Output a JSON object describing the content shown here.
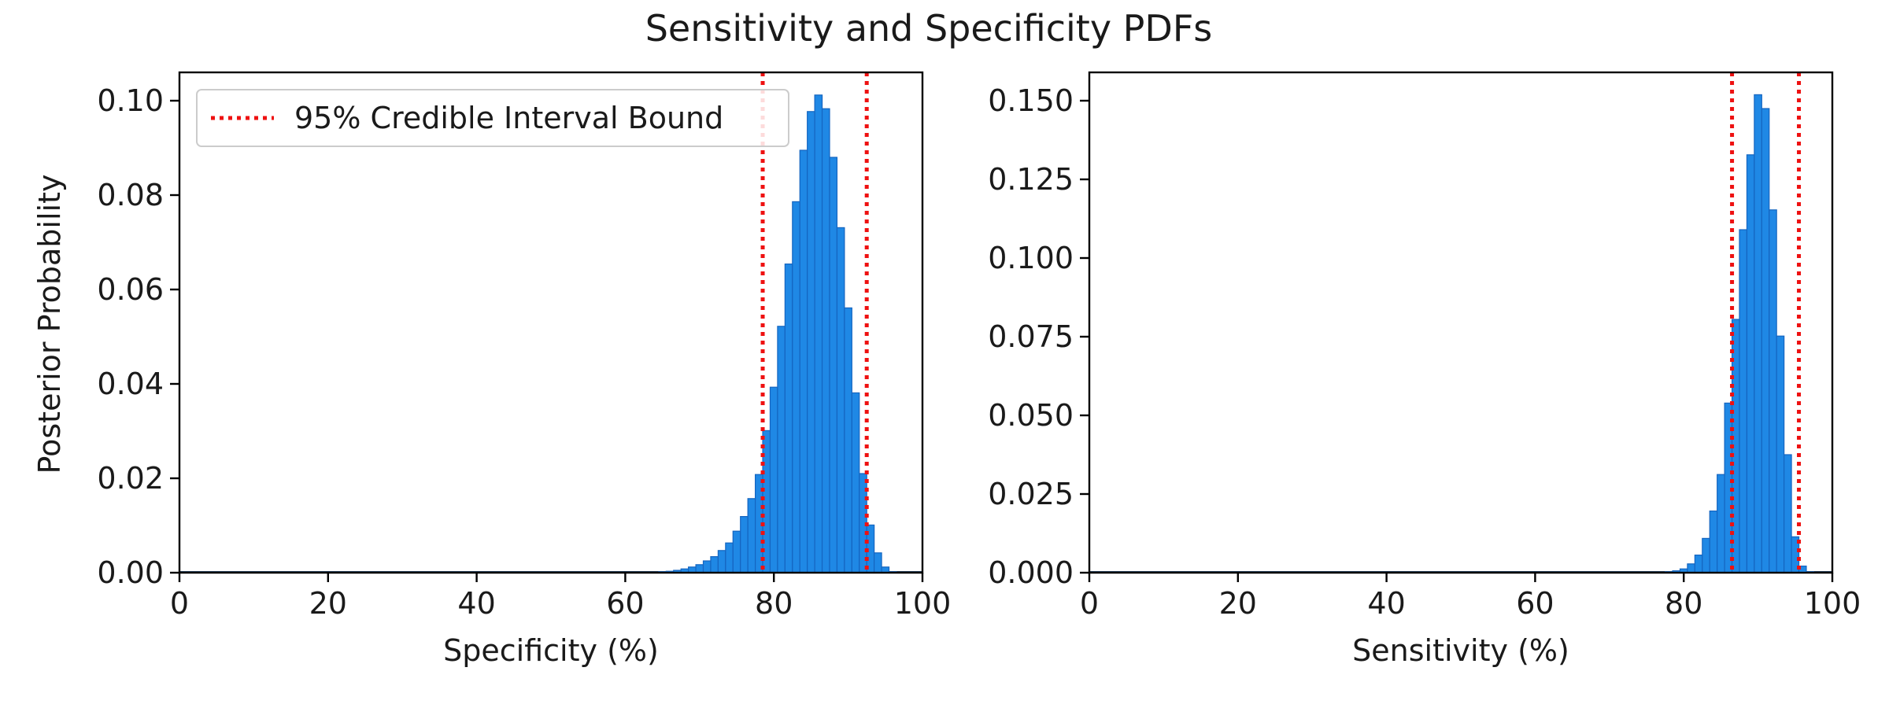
{
  "figure": {
    "title": "Sensitivity and Specificity PDFs"
  },
  "colors": {
    "bar": "#1f88e5",
    "bound": "#ee1111",
    "axis": "#000000"
  },
  "chart_data": [
    {
      "type": "bar",
      "xlabel": "Specificity (%)",
      "ylabel": "Posterior Probability",
      "xlim": [
        0,
        100
      ],
      "ylim": [
        0,
        0.106
      ],
      "xticks": [
        "0",
        "20",
        "40",
        "60",
        "80",
        "100"
      ],
      "yticks": [
        "0.00",
        "0.02",
        "0.04",
        "0.06",
        "0.08",
        "0.10"
      ],
      "legend": {
        "label": "95% Credible Interval Bound",
        "position": "top-left"
      },
      "credible_interval": [
        78.5,
        92.5
      ],
      "x": [
        65,
        66,
        67,
        68,
        69,
        70,
        71,
        72,
        73,
        74,
        75,
        76,
        77,
        78,
        79,
        80,
        81,
        82,
        83,
        84,
        85,
        86,
        87,
        88,
        89,
        90,
        91,
        92,
        93,
        94,
        95,
        96
      ],
      "values": [
        0.0002,
        0.0003,
        0.0005,
        0.0008,
        0.0012,
        0.0017,
        0.0025,
        0.0034,
        0.0047,
        0.0063,
        0.0088,
        0.0119,
        0.0157,
        0.0208,
        0.0301,
        0.0393,
        0.0522,
        0.0654,
        0.0786,
        0.0895,
        0.0977,
        0.1012,
        0.0983,
        0.088,
        0.0731,
        0.0561,
        0.0381,
        0.021,
        0.0101,
        0.0042,
        0.0012,
        0.0002
      ],
      "bar_width": 1
    },
    {
      "type": "bar",
      "xlabel": "Sensitivity (%)",
      "ylabel": "",
      "xlim": [
        0,
        100
      ],
      "ylim": [
        0,
        0.159
      ],
      "xticks": [
        "0",
        "20",
        "40",
        "60",
        "80",
        "100"
      ],
      "yticks": [
        "0.000",
        "0.025",
        "0.050",
        "0.075",
        "0.100",
        "0.125",
        "0.150"
      ],
      "credible_interval": [
        86.5,
        95.5
      ],
      "x": [
        78,
        79,
        80,
        81,
        82,
        83,
        84,
        85,
        86,
        87,
        88,
        89,
        90,
        91,
        92,
        93,
        94,
        95,
        96,
        97
      ],
      "values": [
        0.0003,
        0.0006,
        0.0012,
        0.0028,
        0.0056,
        0.0109,
        0.0196,
        0.0312,
        0.0539,
        0.0805,
        0.109,
        0.1328,
        0.1519,
        0.1475,
        0.1153,
        0.0752,
        0.0375,
        0.0114,
        0.0021,
        0.0003
      ],
      "bar_width": 1
    }
  ]
}
